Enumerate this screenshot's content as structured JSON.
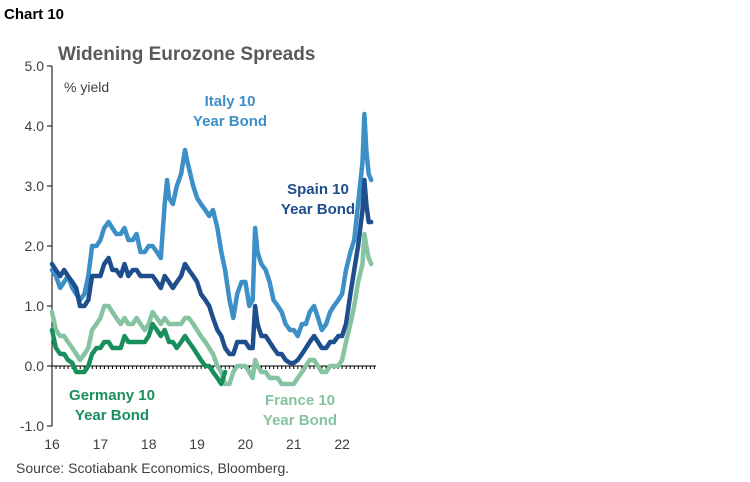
{
  "header": {
    "label": "Chart 10"
  },
  "source": "Source: Scotiabank Economics, Bloomberg.",
  "chart_data": {
    "type": "line",
    "title": "Widening Eurozone Spreads",
    "ylabel": "% yield",
    "xlabel": "",
    "ylim": [
      -1.0,
      5.0
    ],
    "xlim": [
      2016,
      2022.7
    ],
    "yticks": [
      "-1.0",
      "0.0",
      "1.0",
      "2.0",
      "3.0",
      "4.0",
      "5.0"
    ],
    "xticks": [
      "16",
      "17",
      "18",
      "19",
      "20",
      "21",
      "22"
    ],
    "grid": false,
    "legend": "inline labels",
    "series": [
      {
        "name": "Italy 10 Year Bond",
        "color": "#3d8fc8",
        "x": [
          2016.0,
          2016.08,
          2016.17,
          2016.25,
          2016.33,
          2016.42,
          2016.5,
          2016.58,
          2016.67,
          2016.75,
          2016.83,
          2016.92,
          2017.0,
          2017.08,
          2017.17,
          2017.25,
          2017.33,
          2017.42,
          2017.5,
          2017.58,
          2017.67,
          2017.75,
          2017.83,
          2017.92,
          2018.0,
          2018.08,
          2018.17,
          2018.25,
          2018.33,
          2018.38,
          2018.42,
          2018.5,
          2018.58,
          2018.67,
          2018.75,
          2018.8,
          2018.83,
          2018.92,
          2019.0,
          2019.08,
          2019.17,
          2019.25,
          2019.33,
          2019.42,
          2019.5,
          2019.58,
          2019.67,
          2019.75,
          2019.83,
          2019.92,
          2020.0,
          2020.08,
          2020.15,
          2020.2,
          2020.25,
          2020.33,
          2020.42,
          2020.5,
          2020.58,
          2020.67,
          2020.75,
          2020.83,
          2020.92,
          2021.0,
          2021.08,
          2021.17,
          2021.25,
          2021.33,
          2021.42,
          2021.5,
          2021.58,
          2021.67,
          2021.75,
          2021.83,
          2021.92,
          2022.0,
          2022.08,
          2022.17,
          2022.25,
          2022.33,
          2022.42,
          2022.46,
          2022.5,
          2022.55,
          2022.6
        ],
        "values": [
          1.6,
          1.5,
          1.3,
          1.4,
          1.5,
          1.3,
          1.2,
          1.1,
          1.2,
          1.5,
          2.0,
          2.0,
          2.1,
          2.3,
          2.4,
          2.3,
          2.2,
          2.2,
          2.3,
          2.1,
          2.1,
          2.2,
          1.9,
          1.9,
          2.0,
          2.0,
          1.9,
          1.8,
          2.7,
          3.1,
          2.8,
          2.7,
          3.0,
          3.2,
          3.6,
          3.4,
          3.3,
          3.0,
          2.8,
          2.7,
          2.6,
          2.5,
          2.6,
          2.3,
          1.9,
          1.6,
          1.1,
          0.8,
          1.2,
          1.4,
          1.4,
          1.0,
          1.1,
          2.3,
          1.9,
          1.7,
          1.6,
          1.4,
          1.1,
          1.0,
          0.9,
          0.7,
          0.6,
          0.6,
          0.5,
          0.7,
          0.7,
          0.9,
          1.0,
          0.8,
          0.6,
          0.7,
          0.9,
          1.0,
          1.1,
          1.2,
          1.6,
          1.9,
          2.1,
          2.7,
          3.4,
          4.2,
          3.6,
          3.2,
          3.1
        ]
      },
      {
        "name": "Spain 10 Year Bond",
        "color": "#1f4e8c",
        "x": [
          2016.0,
          2016.08,
          2016.17,
          2016.25,
          2016.33,
          2016.42,
          2016.5,
          2016.58,
          2016.67,
          2016.75,
          2016.83,
          2016.92,
          2017.0,
          2017.08,
          2017.17,
          2017.25,
          2017.33,
          2017.42,
          2017.5,
          2017.58,
          2017.67,
          2017.75,
          2017.83,
          2017.92,
          2018.0,
          2018.08,
          2018.17,
          2018.25,
          2018.33,
          2018.42,
          2018.5,
          2018.58,
          2018.67,
          2018.75,
          2018.83,
          2018.92,
          2019.0,
          2019.08,
          2019.17,
          2019.25,
          2019.33,
          2019.42,
          2019.5,
          2019.58,
          2019.67,
          2019.75,
          2019.83,
          2019.92,
          2020.0,
          2020.08,
          2020.15,
          2020.2,
          2020.25,
          2020.33,
          2020.42,
          2020.5,
          2020.58,
          2020.67,
          2020.75,
          2020.83,
          2020.92,
          2021.0,
          2021.08,
          2021.17,
          2021.25,
          2021.33,
          2021.42,
          2021.5,
          2021.58,
          2021.67,
          2021.75,
          2021.83,
          2021.92,
          2022.0,
          2022.08,
          2022.17,
          2022.25,
          2022.33,
          2022.42,
          2022.46,
          2022.5,
          2022.55,
          2022.6
        ],
        "values": [
          1.7,
          1.6,
          1.5,
          1.6,
          1.5,
          1.4,
          1.3,
          1.0,
          1.0,
          1.1,
          1.5,
          1.5,
          1.5,
          1.7,
          1.8,
          1.6,
          1.6,
          1.5,
          1.7,
          1.5,
          1.6,
          1.6,
          1.5,
          1.5,
          1.5,
          1.5,
          1.4,
          1.3,
          1.5,
          1.4,
          1.3,
          1.4,
          1.5,
          1.7,
          1.6,
          1.5,
          1.4,
          1.2,
          1.1,
          1.0,
          0.8,
          0.6,
          0.5,
          0.3,
          0.2,
          0.2,
          0.4,
          0.4,
          0.4,
          0.3,
          0.3,
          1.0,
          0.7,
          0.5,
          0.5,
          0.4,
          0.3,
          0.2,
          0.2,
          0.1,
          0.05,
          0.05,
          0.1,
          0.2,
          0.3,
          0.4,
          0.5,
          0.4,
          0.3,
          0.3,
          0.4,
          0.4,
          0.5,
          0.5,
          0.7,
          1.2,
          1.6,
          2.0,
          2.6,
          3.1,
          2.7,
          2.4,
          2.4
        ]
      },
      {
        "name": "France 10 Year Bond",
        "color": "#86c3a0",
        "x": [
          2016.0,
          2016.08,
          2016.17,
          2016.25,
          2016.33,
          2016.42,
          2016.5,
          2016.58,
          2016.67,
          2016.75,
          2016.83,
          2016.92,
          2017.0,
          2017.08,
          2017.17,
          2017.25,
          2017.33,
          2017.42,
          2017.5,
          2017.58,
          2017.67,
          2017.75,
          2017.83,
          2017.92,
          2018.0,
          2018.08,
          2018.17,
          2018.25,
          2018.33,
          2018.42,
          2018.5,
          2018.58,
          2018.67,
          2018.75,
          2018.83,
          2018.92,
          2019.0,
          2019.08,
          2019.17,
          2019.25,
          2019.33,
          2019.42,
          2019.5,
          2019.58,
          2019.67,
          2019.75,
          2019.83,
          2019.92,
          2020.0,
          2020.08,
          2020.15,
          2020.2,
          2020.25,
          2020.33,
          2020.42,
          2020.5,
          2020.58,
          2020.67,
          2020.75,
          2020.83,
          2020.92,
          2021.0,
          2021.08,
          2021.17,
          2021.25,
          2021.33,
          2021.42,
          2021.5,
          2021.58,
          2021.67,
          2021.75,
          2021.83,
          2021.92,
          2022.0,
          2022.08,
          2022.17,
          2022.25,
          2022.33,
          2022.42,
          2022.46,
          2022.5,
          2022.55,
          2022.6
        ],
        "values": [
          0.9,
          0.6,
          0.5,
          0.5,
          0.4,
          0.3,
          0.2,
          0.1,
          0.2,
          0.3,
          0.6,
          0.7,
          0.8,
          1.0,
          1.0,
          0.9,
          0.8,
          0.7,
          0.8,
          0.7,
          0.7,
          0.8,
          0.7,
          0.6,
          0.7,
          0.9,
          0.8,
          0.7,
          0.8,
          0.7,
          0.7,
          0.7,
          0.7,
          0.8,
          0.8,
          0.7,
          0.6,
          0.5,
          0.4,
          0.3,
          0.2,
          0.0,
          -0.1,
          -0.3,
          -0.3,
          -0.1,
          0.0,
          0.0,
          0.0,
          -0.1,
          -0.2,
          0.1,
          0.0,
          -0.1,
          -0.1,
          -0.2,
          -0.2,
          -0.2,
          -0.3,
          -0.3,
          -0.3,
          -0.3,
          -0.2,
          -0.1,
          0.0,
          0.1,
          0.1,
          0.0,
          -0.1,
          -0.1,
          0.0,
          0.0,
          0.0,
          0.1,
          0.4,
          0.7,
          1.0,
          1.4,
          1.7,
          2.2,
          2.0,
          1.8,
          1.7
        ]
      },
      {
        "name": "Germany 10 Year Bond",
        "color": "#1a8f5e",
        "x": [
          2016.0,
          2016.08,
          2016.17,
          2016.25,
          2016.33,
          2016.42,
          2016.5,
          2016.58,
          2016.67,
          2016.75,
          2016.83,
          2016.92,
          2017.0,
          2017.08,
          2017.17,
          2017.25,
          2017.33,
          2017.42,
          2017.5,
          2017.58,
          2017.67,
          2017.75,
          2017.83,
          2017.92,
          2018.0,
          2018.08,
          2018.17,
          2018.25,
          2018.33,
          2018.42,
          2018.5,
          2018.58,
          2018.67,
          2018.75,
          2018.83,
          2018.92,
          2019.0,
          2019.08,
          2019.17,
          2019.25,
          2019.33,
          2019.42,
          2019.5,
          2019.58
        ],
        "values": [
          0.6,
          0.3,
          0.2,
          0.2,
          0.1,
          0.05,
          -0.1,
          -0.1,
          -0.1,
          0.0,
          0.2,
          0.3,
          0.3,
          0.4,
          0.4,
          0.3,
          0.3,
          0.3,
          0.5,
          0.4,
          0.4,
          0.4,
          0.4,
          0.4,
          0.5,
          0.7,
          0.6,
          0.5,
          0.6,
          0.4,
          0.4,
          0.3,
          0.4,
          0.5,
          0.4,
          0.3,
          0.2,
          0.1,
          0.0,
          0.0,
          -0.1,
          -0.2,
          -0.3,
          -0.1
        ]
      }
    ],
    "annotations": [
      {
        "lines": [
          "Italy 10",
          "Year Bond"
        ],
        "series": "Italy 10 Year Bond"
      },
      {
        "lines": [
          "Spain 10",
          "Year Bond"
        ],
        "series": "Spain 10 Year Bond"
      },
      {
        "lines": [
          "Germany 10",
          "Year Bond"
        ],
        "series": "Germany 10 Year Bond"
      },
      {
        "lines": [
          "France 10",
          "Year Bond"
        ],
        "series": "France 10 Year Bond"
      }
    ]
  }
}
